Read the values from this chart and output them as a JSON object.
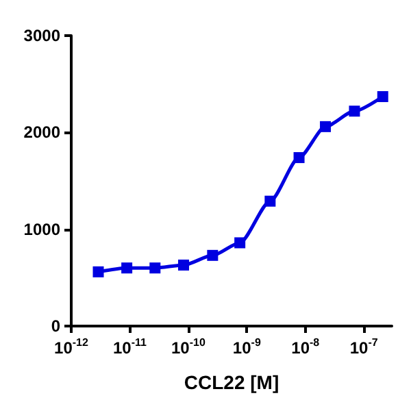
{
  "chart_data": {
    "type": "line",
    "xlabel": "CCL22 [M]",
    "log": "x",
    "x": [
      2.9e-12,
      8.9e-12,
      2.7e-11,
      8.3e-11,
      2.6e-10,
      7.6e-10,
      2.5e-09,
      7.8e-09,
      2.2e-08,
      6.9e-08,
      2.1e-07
    ],
    "series": [
      {
        "color": "#0000e0",
        "values": [
          560,
          600,
          600,
          630,
          730,
          860,
          1290,
          1740,
          2060,
          2220,
          2370
        ]
      }
    ],
    "xlim": [
      1e-12,
      3e-07
    ],
    "xticks": [
      {
        "value": 1e-12,
        "label": "10$^{-12}$"
      },
      {
        "value": 1e-11,
        "label": "10$^{-11}$"
      },
      {
        "value": 1e-10,
        "label": "10$^{-10}$"
      },
      {
        "value": 1e-09,
        "label": "10$^{-9}$"
      },
      {
        "value": 1e-08,
        "label": "10$^{-8}$"
      },
      {
        "value": 1e-07,
        "label": "10$^{-7}$"
      }
    ],
    "ylim": [
      0,
      3000
    ],
    "yticks": [
      0,
      1000,
      2000,
      3000
    ],
    "grid": false,
    "marker": "square",
    "line_style": "solid"
  }
}
